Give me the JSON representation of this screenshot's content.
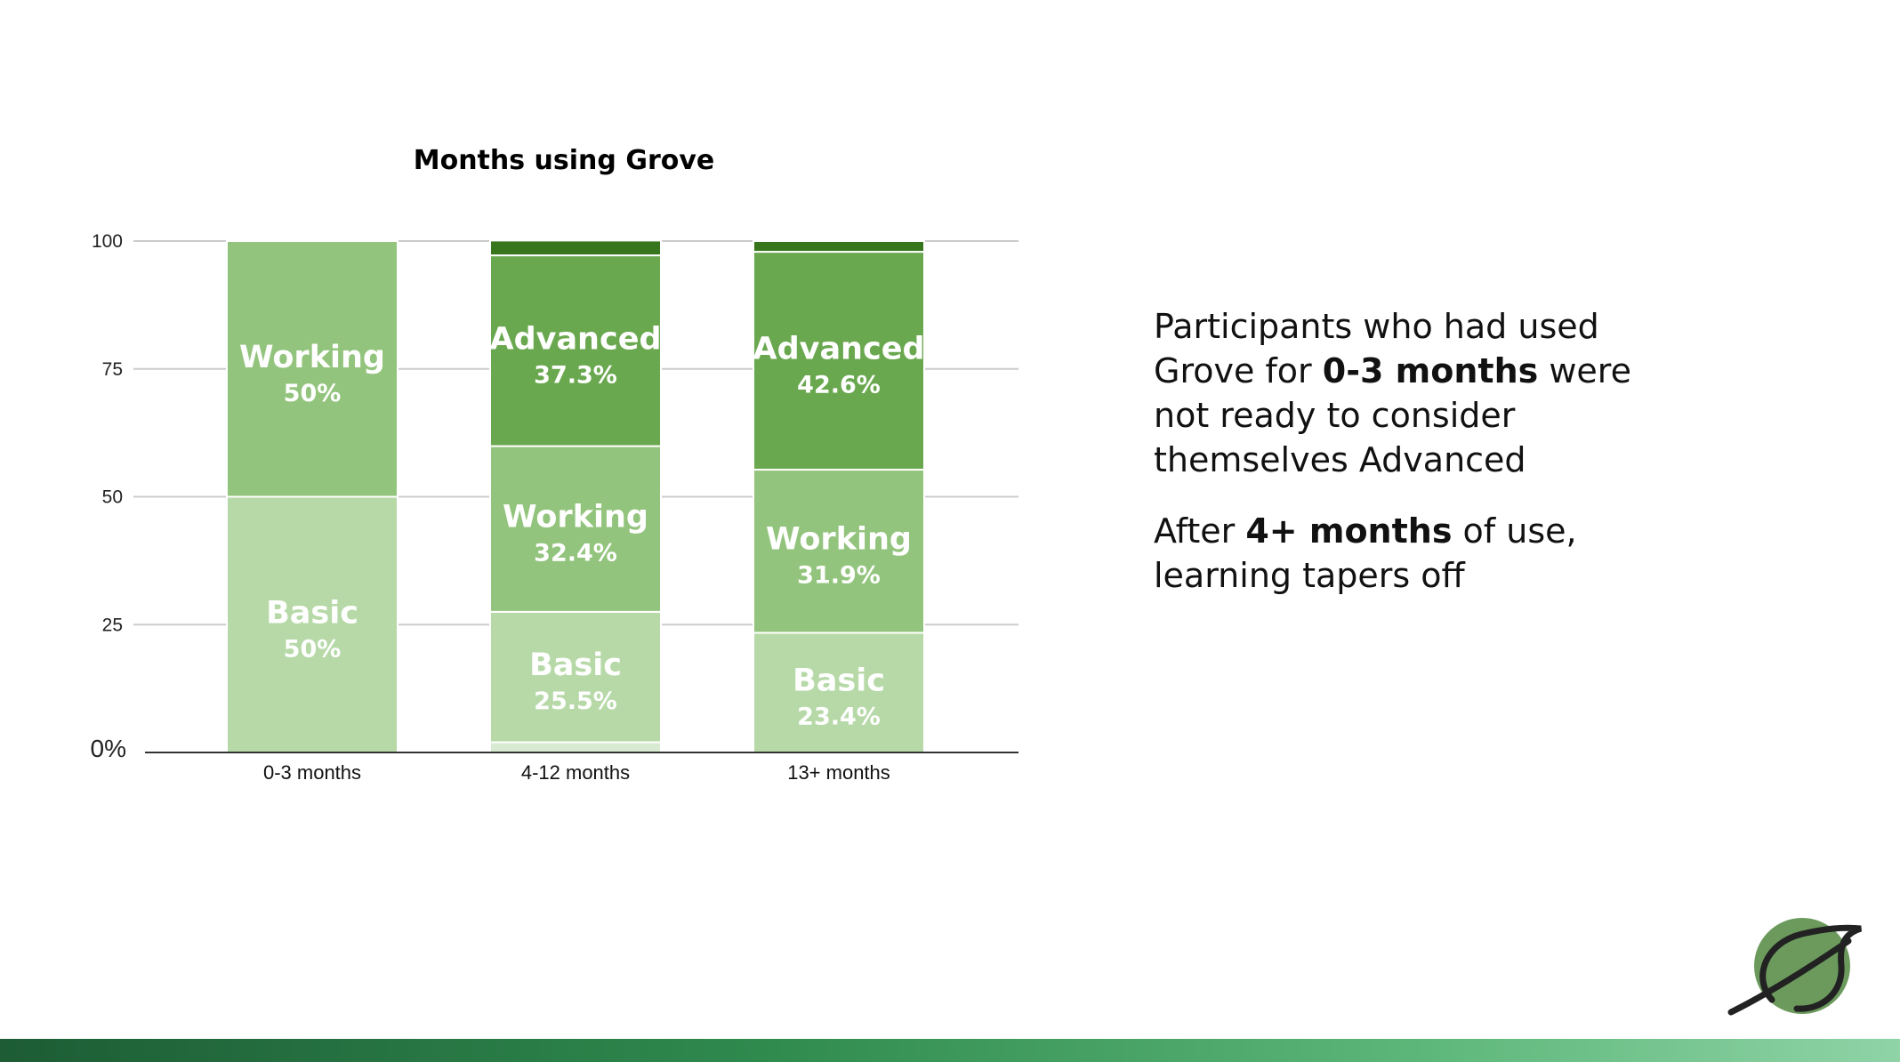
{
  "chart_data": {
    "type": "bar",
    "stacked": true,
    "title": "Months using Grove",
    "categories": [
      "0-3 months",
      "4-12 months",
      "13+ months"
    ],
    "ylim": [
      0,
      100
    ],
    "yticks": [
      25,
      50,
      75,
      100
    ],
    "ytick_labels": [
      "25",
      "50",
      "75",
      "100"
    ],
    "zero_label": "0%",
    "grid": true,
    "legend": "none",
    "series": [
      {
        "name": "Basic",
        "color": "#b7d9a8",
        "values": [
          50,
          25.5,
          23.4
        ],
        "labels": [
          "50%",
          "25.5%",
          "23.4%"
        ]
      },
      {
        "name": "Working",
        "color": "#93c47d",
        "values": [
          50,
          32.4,
          31.9
        ],
        "labels": [
          "50%",
          "32.4%",
          "31.9%"
        ]
      },
      {
        "name": "Advanced",
        "color": "#6aa84f",
        "values": [
          0,
          37.3,
          42.6
        ],
        "labels": [
          "",
          "37.3%",
          "42.6%"
        ]
      }
    ],
    "unlabeled_segments": [
      {
        "position": "bottom",
        "color": "#d9ead3",
        "values": [
          0,
          2,
          0
        ]
      },
      {
        "position": "top",
        "color": "#38761d",
        "values": [
          0,
          2.9,
          2.1
        ]
      }
    ]
  },
  "notes": {
    "p1_a": "Participants who had used Grove for ",
    "p1_b": "0-3 months",
    "p1_c": " were not ready to consider themselves Advanced",
    "p2_a": "After ",
    "p2_b": "4+ months",
    "p2_c": " of use, learning tapers off"
  },
  "colors": {
    "footer_start": "#1d5c35",
    "footer_end": "#8fd3a6",
    "logo_fill": "#6c9a5d",
    "logo_stroke": "#222222"
  },
  "logo": {
    "icon": "grove-leaf-logo-icon"
  }
}
